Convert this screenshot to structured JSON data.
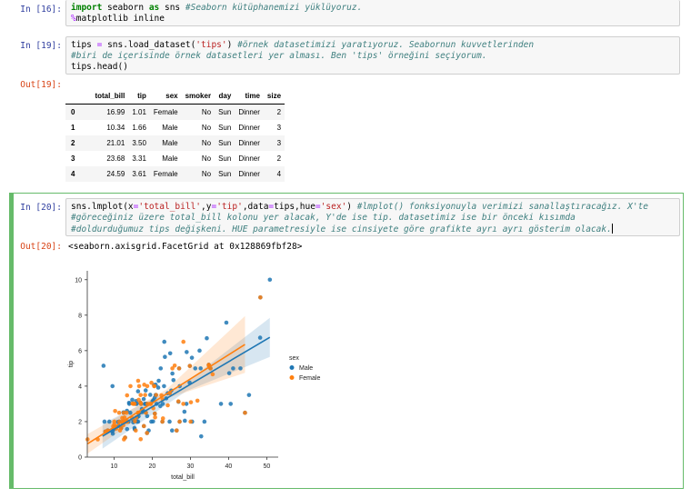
{
  "cell16": {
    "prompt": "In [16]:",
    "line1_kw1": "import",
    "line1_mid": " seaborn ",
    "line1_kw2": "as",
    "line1_end": " sns ",
    "line1_comment": "#Seaborn kütüphanemizi yüklüyoruz.",
    "line2_magic": "%",
    "line2_text": "matplotlib inline"
  },
  "cell19": {
    "prompt": "In [19]:",
    "line1_code_a": "tips ",
    "line1_eq": "=",
    "line1_code_b": " sns.load_dataset(",
    "line1_str": "'tips'",
    "line1_code_c": ") ",
    "line1_comment": "#örnek datasetimizi yaratıyoruz. Seabornun kuvvetlerinden",
    "line2_comment": "#biri de içerisinde örnek datasetleri yer alması. Ben 'tips' örneğini seçiyorum.",
    "line3_code_a": "tips.head",
    "line3_paren": "()",
    "out_prompt": "Out[19]:"
  },
  "table": {
    "columns": [
      "",
      "total_bill",
      "tip",
      "sex",
      "smoker",
      "day",
      "time",
      "size"
    ],
    "rows": [
      [
        "0",
        "16.99",
        "1.01",
        "Female",
        "No",
        "Sun",
        "Dinner",
        "2"
      ],
      [
        "1",
        "10.34",
        "1.66",
        "Male",
        "No",
        "Sun",
        "Dinner",
        "3"
      ],
      [
        "2",
        "21.01",
        "3.50",
        "Male",
        "No",
        "Sun",
        "Dinner",
        "3"
      ],
      [
        "3",
        "23.68",
        "3.31",
        "Male",
        "No",
        "Sun",
        "Dinner",
        "2"
      ],
      [
        "4",
        "24.59",
        "3.61",
        "Female",
        "No",
        "Sun",
        "Dinner",
        "4"
      ]
    ]
  },
  "cell20": {
    "prompt": "In [20]:",
    "line1_a": "sns.lmplot(x",
    "line1_eq1": "=",
    "line1_s1": "'total_bill'",
    "line1_b": ",y",
    "line1_eq2": "=",
    "line1_s2": "'tip'",
    "line1_c": ",data",
    "line1_eq3": "=",
    "line1_d": "tips,hue",
    "line1_eq4": "=",
    "line1_s3": "'sex'",
    "line1_e": ") ",
    "line1_comment": "#lmplot() fonksiyonuyla verimizi sanallaştıracağız. X'te",
    "line2_comment": "#göreceğiniz üzere total_bill kolonu yer alacak, Y'de ise tip. datasetimiz ise bir önceki kısımda",
    "line3_comment": "#doldurduğumuz tips değişkeni. HUE parametresiyle ise cinsiyete göre grafikte ayrı ayrı gösterim olacak.",
    "out_prompt": "Out[20]:",
    "out_text": "<seaborn.axisgrid.FacetGrid at 0x128869fbf28>"
  },
  "colors": {
    "male": "#1f77b4",
    "female": "#ff7f0e"
  },
  "chart_data": {
    "type": "scatter",
    "title": "",
    "xlabel": "total_bill",
    "ylabel": "tip",
    "xlim": [
      3,
      53
    ],
    "ylim": [
      0,
      10.5
    ],
    "xticks": [
      10,
      20,
      30,
      40,
      50
    ],
    "yticks": [
      0,
      2,
      4,
      6,
      8,
      10
    ],
    "legend": {
      "title": "sex",
      "placement": "right"
    },
    "series": [
      {
        "name": "Male",
        "color": "#1f77b4",
        "regression": [
          [
            7,
            1.18
          ],
          [
            50.8,
            6.75
          ]
        ],
        "points": [
          [
            10.34,
            1.66
          ],
          [
            21.01,
            3.5
          ],
          [
            23.68,
            3.31
          ],
          [
            25.29,
            4.71
          ],
          [
            8.77,
            2.0
          ],
          [
            26.88,
            3.12
          ],
          [
            15.04,
            1.96
          ],
          [
            14.78,
            3.23
          ],
          [
            10.27,
            1.71
          ],
          [
            15.42,
            1.57
          ],
          [
            18.43,
            3.0
          ],
          [
            21.58,
            3.92
          ],
          [
            16.29,
            3.71
          ],
          [
            17.46,
            2.54
          ],
          [
            13.94,
            3.06
          ],
          [
            9.68,
            1.32
          ],
          [
            30.4,
            5.6
          ],
          [
            18.29,
            3.0
          ],
          [
            22.23,
            5.0
          ],
          [
            32.4,
            6.0
          ],
          [
            28.55,
            2.05
          ],
          [
            18.04,
            3.0
          ],
          [
            12.54,
            2.5
          ],
          [
            9.94,
            1.56
          ],
          [
            25.56,
            4.34
          ],
          [
            19.49,
            3.51
          ],
          [
            38.01,
            3.0
          ],
          [
            11.24,
            1.76
          ],
          [
            48.27,
            6.73
          ],
          [
            20.29,
            3.21
          ],
          [
            13.81,
            2.0
          ],
          [
            11.02,
            1.98
          ],
          [
            18.29,
            3.76
          ],
          [
            17.59,
            2.64
          ],
          [
            20.08,
            3.15
          ],
          [
            20.23,
            2.01
          ],
          [
            15.01,
            2.09
          ],
          [
            12.02,
            1.97
          ],
          [
            17.07,
            3.0
          ],
          [
            16.0,
            2.0
          ],
          [
            24.06,
            3.6
          ],
          [
            16.31,
            2.0
          ],
          [
            18.69,
            2.31
          ],
          [
            31.27,
            5.0
          ],
          [
            16.04,
            2.24
          ],
          [
            21.7,
            4.3
          ],
          [
            34.83,
            5.17
          ],
          [
            7.25,
            5.15
          ],
          [
            39.42,
            7.58
          ],
          [
            48.33,
            9.0
          ],
          [
            44.3,
            2.5
          ],
          [
            50.81,
            10.0
          ],
          [
            40.55,
            3.0
          ],
          [
            28.97,
            3.0
          ],
          [
            32.68,
            5.0
          ],
          [
            13.51,
            2.0
          ],
          [
            24.55,
            2.0
          ],
          [
            27.2,
            4.0
          ],
          [
            22.76,
            3.0
          ],
          [
            17.29,
            2.71
          ],
          [
            25.21,
            1.5
          ],
          [
            34.81,
            5.2
          ],
          [
            29.03,
            5.92
          ],
          [
            20.65,
            3.35
          ],
          [
            35.26,
            5.0
          ],
          [
            15.69,
            3.0
          ],
          [
            9.55,
            1.45
          ],
          [
            45.35,
            3.5
          ],
          [
            23.33,
            5.65
          ],
          [
            12.74,
            2.01
          ],
          [
            20.69,
            2.45
          ],
          [
            24.71,
            5.85
          ],
          [
            21.16,
            3.0
          ],
          [
            28.44,
            2.56
          ],
          [
            23.1,
            4.0
          ],
          [
            13.42,
            1.58
          ],
          [
            14.0,
            3.0
          ],
          [
            22.12,
            2.88
          ],
          [
            26.41,
            1.5
          ],
          [
            17.78,
            3.27
          ],
          [
            30.46,
            2.0
          ],
          [
            40.17,
            4.73
          ],
          [
            27.18,
            2.0
          ],
          [
            12.9,
            1.1
          ],
          [
            7.74,
            1.44
          ],
          [
            23.17,
            6.5
          ],
          [
            13.39,
            2.61
          ],
          [
            16.93,
            3.07
          ],
          [
            32.83,
            1.17
          ],
          [
            22.67,
            2.0
          ],
          [
            17.82,
            1.75
          ],
          [
            11.38,
            2.0
          ],
          [
            14.26,
            2.5
          ],
          [
            15.98,
            3.0
          ],
          [
            20.49,
            4.06
          ],
          [
            25.0,
            3.75
          ],
          [
            19.77,
            2.0
          ],
          [
            18.35,
            2.5
          ],
          [
            15.36,
            1.64
          ],
          [
            20.9,
            3.5
          ],
          [
            12.48,
            2.52
          ],
          [
            8.52,
            1.48
          ],
          [
            29.85,
            5.14
          ],
          [
            9.6,
            4.0
          ],
          [
            43.11,
            5.0
          ],
          [
            13.0,
            2.0
          ],
          [
            19.08,
            1.5
          ],
          [
            34.3,
            6.7
          ],
          [
            41.19,
            5.0
          ],
          [
            27.05,
            5.0
          ],
          [
            16.43,
            2.3
          ],
          [
            8.35,
            1.5
          ],
          [
            18.64,
            1.36
          ],
          [
            11.87,
            1.63
          ],
          [
            29.8,
            4.2
          ],
          [
            20.92,
            4.08
          ],
          [
            15.81,
            3.16
          ],
          [
            7.51,
            2.0
          ],
          [
            24.59,
            3.61
          ],
          [
            33.68,
            2.0
          ]
        ]
      },
      {
        "name": "Female",
        "color": "#ff7f0e",
        "regression": [
          [
            3.07,
            0.75
          ],
          [
            44.3,
            6.35
          ]
        ],
        "points": [
          [
            16.99,
            1.01
          ],
          [
            24.59,
            3.61
          ],
          [
            35.26,
            5.0
          ],
          [
            14.83,
            3.02
          ],
          [
            10.33,
            1.67
          ],
          [
            16.97,
            3.5
          ],
          [
            20.29,
            2.75
          ],
          [
            15.77,
            2.23
          ],
          [
            19.65,
            3.0
          ],
          [
            15.06,
            3.0
          ],
          [
            20.69,
            2.45
          ],
          [
            16.93,
            3.07
          ],
          [
            10.29,
            2.6
          ],
          [
            34.81,
            5.2
          ],
          [
            26.41,
            1.5
          ],
          [
            16.45,
            2.47
          ],
          [
            3.07,
            1.0
          ],
          [
            17.07,
            3.0
          ],
          [
            26.86,
            3.14
          ],
          [
            25.28,
            5.0
          ],
          [
            14.73,
            2.2
          ],
          [
            10.07,
            1.83
          ],
          [
            34.83,
            5.17
          ],
          [
            5.75,
            1.0
          ],
          [
            16.32,
            4.3
          ],
          [
            22.75,
            3.25
          ],
          [
            11.35,
            2.5
          ],
          [
            15.38,
            3.0
          ],
          [
            44.3,
            2.5
          ],
          [
            22.42,
            3.48
          ],
          [
            15.48,
            2.02
          ],
          [
            14.31,
            4.0
          ],
          [
            13.37,
            2.0
          ],
          [
            12.54,
            2.5
          ],
          [
            10.59,
            1.61
          ],
          [
            18.15,
            3.5
          ],
          [
            13.03,
            2.0
          ],
          [
            17.92,
            4.08
          ],
          [
            19.44,
            3.0
          ],
          [
            11.87,
            1.63
          ],
          [
            21.01,
            3.5
          ],
          [
            20.53,
            4.0
          ],
          [
            16.47,
            3.23
          ],
          [
            13.42,
            3.48
          ],
          [
            12.43,
            1.8
          ],
          [
            18.35,
            2.5
          ],
          [
            15.69,
            1.5
          ],
          [
            8.35,
            1.5
          ],
          [
            9.78,
            1.73
          ],
          [
            12.26,
            2.0
          ],
          [
            13.13,
            2.0
          ],
          [
            13.0,
            2.0
          ],
          [
            16.4,
            2.5
          ],
          [
            20.76,
            2.24
          ],
          [
            22.82,
            2.18
          ],
          [
            29.85,
            5.14
          ],
          [
            31.85,
            3.18
          ],
          [
            27.05,
            5.0
          ],
          [
            16.58,
            4.0
          ],
          [
            12.16,
            2.2
          ],
          [
            16.27,
            2.5
          ],
          [
            10.09,
            2.0
          ],
          [
            19.81,
            4.19
          ],
          [
            12.6,
            1.0
          ],
          [
            18.64,
            1.36
          ],
          [
            11.38,
            2.0
          ],
          [
            24.08,
            2.92
          ],
          [
            30.14,
            3.09
          ],
          [
            35.83,
            4.67
          ],
          [
            27.18,
            2.0
          ],
          [
            22.67,
            2.0
          ],
          [
            17.82,
            1.75
          ],
          [
            18.78,
            3.0
          ],
          [
            12.76,
            2.23
          ],
          [
            13.27,
            2.5
          ],
          [
            28.17,
            6.5
          ],
          [
            12.9,
            1.1
          ],
          [
            28.15,
            3.0
          ],
          [
            11.59,
            1.5
          ],
          [
            7.74,
            1.44
          ],
          [
            30.06,
            2.0
          ],
          [
            25.89,
            5.16
          ],
          [
            48.33,
            9.0
          ],
          [
            13.51,
            2.0
          ],
          [
            18.71,
            4.0
          ],
          [
            12.74,
            2.01
          ],
          [
            13.0,
            2.0
          ],
          [
            16.4,
            2.5
          ],
          [
            20.53,
            4.0
          ]
        ]
      }
    ]
  }
}
